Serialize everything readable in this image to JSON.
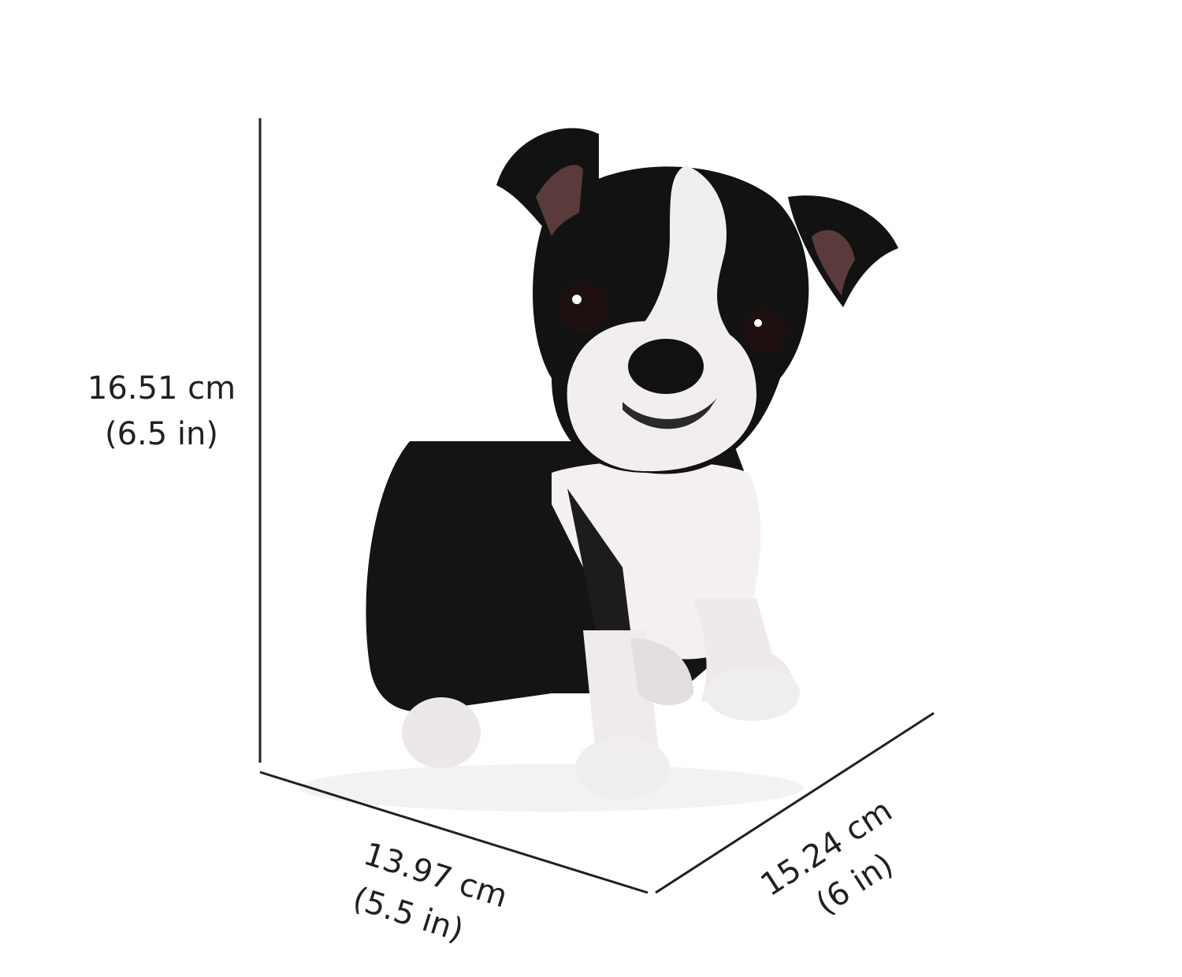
{
  "dimensions": {
    "height": {
      "metric": "16.51 cm",
      "imperial": "(6.5 in)"
    },
    "width": {
      "metric": "13.97 cm",
      "imperial": "(5.5 in)"
    },
    "depth": {
      "metric": "15.24 cm",
      "imperial": "(6 in)"
    }
  }
}
